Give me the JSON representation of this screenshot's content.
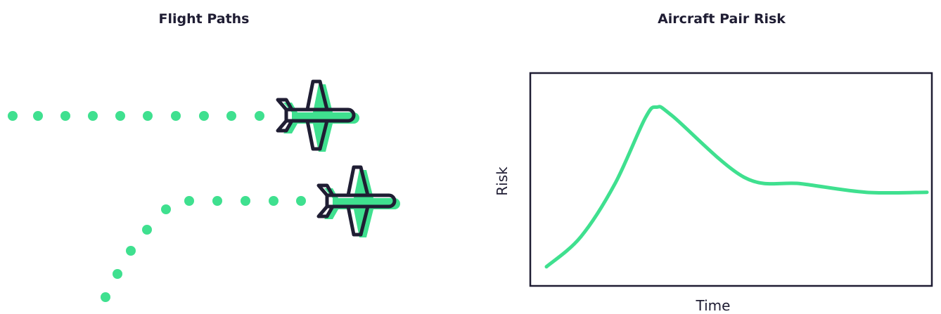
{
  "left_panel": {
    "title": "Flight Paths"
  },
  "right_panel": {
    "title": "Aircraft Pair Risk"
  },
  "colors": {
    "accent": "#3fe08f",
    "ink": "#1f1d33",
    "background": "#ffffff"
  },
  "icons": [
    "airplane-icon",
    "airplane-icon"
  ],
  "chart_data": {
    "type": "line",
    "title": "Aircraft Pair Risk",
    "xlabel": "Time",
    "ylabel": "Risk",
    "x_ticks": [],
    "y_ticks": [],
    "grid": false,
    "legend": "none",
    "xlim": [
      0,
      1
    ],
    "ylim": [
      0,
      1
    ],
    "series": [
      {
        "values": [
          {
            "x": 0.0,
            "y": 0.09
          },
          {
            "x": 0.09,
            "y": 0.23
          },
          {
            "x": 0.18,
            "y": 0.48
          },
          {
            "x": 0.26,
            "y": 0.79
          },
          {
            "x": 0.29,
            "y": 0.84
          },
          {
            "x": 0.33,
            "y": 0.8
          },
          {
            "x": 0.52,
            "y": 0.51
          },
          {
            "x": 0.67,
            "y": 0.48
          },
          {
            "x": 0.84,
            "y": 0.44
          },
          {
            "x": 1.0,
            "y": 0.44
          }
        ]
      }
    ]
  }
}
